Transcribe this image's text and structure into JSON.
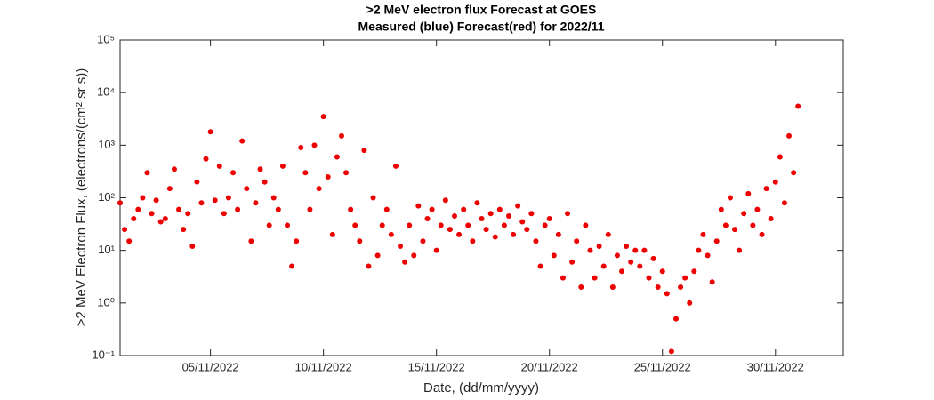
{
  "chart_data": {
    "type": "scatter",
    "title": ">2 MeV electron flux Forecast at GOES",
    "subtitle": "Measured (blue) Forecast(red) for 2022/11",
    "x_label": "Date, (dd/mm/yyyy)",
    "y_label": ">2 MeV Electron Flux, (electrons/(cm² sr s))",
    "ylog": true,
    "xlim": [
      1,
      33
    ],
    "xticks": [
      {
        "value": 5,
        "label": "05/11/2022"
      },
      {
        "value": 10,
        "label": "10/11/2022"
      },
      {
        "value": 15,
        "label": "15/11/2022"
      },
      {
        "value": 20,
        "label": "20/11/2022"
      },
      {
        "value": 25,
        "label": "25/11/2022"
      },
      {
        "value": 30,
        "label": "30/11/2022"
      }
    ],
    "ylim": [
      0.1,
      100000
    ],
    "yticks": [
      {
        "value": 0.1,
        "label": "10⁻¹"
      },
      {
        "value": 1,
        "label": "10⁰"
      },
      {
        "value": 10,
        "label": "10¹"
      },
      {
        "value": 100,
        "label": "10²"
      },
      {
        "value": 1000,
        "label": "10³"
      },
      {
        "value": 10000,
        "label": "10⁴"
      },
      {
        "value": 100000,
        "label": "10⁵"
      }
    ],
    "series": [
      {
        "color": "#ee0000",
        "x": [
          1,
          1.2,
          1.4,
          1.6,
          1.8,
          2,
          2.2,
          2.4,
          2.6,
          2.8,
          3,
          3.2,
          3.4,
          3.6,
          3.8,
          4,
          4.2,
          4.4,
          4.6,
          4.8,
          5,
          5.2,
          5.4,
          5.6,
          5.8,
          6,
          6.2,
          6.4,
          6.6,
          6.8,
          7,
          7.2,
          7.4,
          7.6,
          7.8,
          8,
          8.2,
          8.4,
          8.6,
          8.8,
          9,
          9.2,
          9.4,
          9.6,
          9.8,
          10,
          10.2,
          10.4,
          10.6,
          10.8,
          11,
          11.2,
          11.4,
          11.6,
          11.8,
          12,
          12.2,
          12.4,
          12.6,
          12.8,
          13,
          13.2,
          13.4,
          13.6,
          13.8,
          14,
          14.2,
          14.4,
          14.6,
          14.8,
          15,
          15.2,
          15.4,
          15.6,
          15.8,
          16,
          16.2,
          16.4,
          16.6,
          16.8,
          17,
          17.2,
          17.4,
          17.6,
          17.8,
          18,
          18.2,
          18.4,
          18.6,
          18.8,
          19,
          19.2,
          19.4,
          19.6,
          19.8,
          20,
          20.2,
          20.4,
          20.6,
          20.8,
          21,
          21.2,
          21.4,
          21.6,
          21.8,
          22,
          22.2,
          22.4,
          22.6,
          22.8,
          23,
          23.2,
          23.4,
          23.6,
          23.8,
          24,
          24.2,
          24.4,
          24.6,
          24.8,
          25,
          25.2,
          25.4,
          25.6,
          25.8,
          26,
          26.2,
          26.4,
          26.6,
          26.8,
          27,
          27.2,
          27.4,
          27.6,
          27.8,
          28,
          28.2,
          28.4,
          28.6,
          28.8,
          29,
          29.2,
          29.4,
          29.6,
          29.8,
          30,
          30.2,
          30.4,
          30.6,
          30.8,
          31
        ],
        "values": [
          80,
          25,
          15,
          40,
          60,
          100,
          300,
          50,
          90,
          35,
          40,
          150,
          350,
          60,
          25,
          50,
          12,
          200,
          80,
          550,
          1800,
          90,
          400,
          50,
          100,
          300,
          60,
          1200,
          150,
          15,
          80,
          350,
          200,
          30,
          100,
          60,
          400,
          30,
          5,
          15,
          900,
          300,
          60,
          1000,
          150,
          3500,
          250,
          20,
          600,
          1500,
          300,
          60,
          30,
          15,
          800,
          5,
          100,
          8,
          30,
          60,
          20,
          400,
          12,
          6,
          30,
          8,
          70,
          15,
          40,
          60,
          10,
          30,
          90,
          25,
          45,
          20,
          60,
          30,
          15,
          80,
          40,
          25,
          50,
          18,
          60,
          30,
          45,
          20,
          70,
          35,
          25,
          50,
          15,
          5,
          30,
          40,
          8,
          20,
          3,
          50,
          6,
          15,
          2,
          30,
          10,
          3,
          12,
          5,
          20,
          2,
          8,
          4,
          12,
          6,
          10,
          5,
          10,
          3,
          7,
          2,
          4,
          1.5,
          0.12,
          0.5,
          2,
          3,
          1,
          4,
          10,
          20,
          8,
          2.5,
          15,
          60,
          30,
          100,
          25,
          10,
          50,
          120,
          30,
          60,
          20,
          150,
          40,
          200,
          600,
          80,
          1500,
          300,
          5500
        ]
      }
    ]
  }
}
